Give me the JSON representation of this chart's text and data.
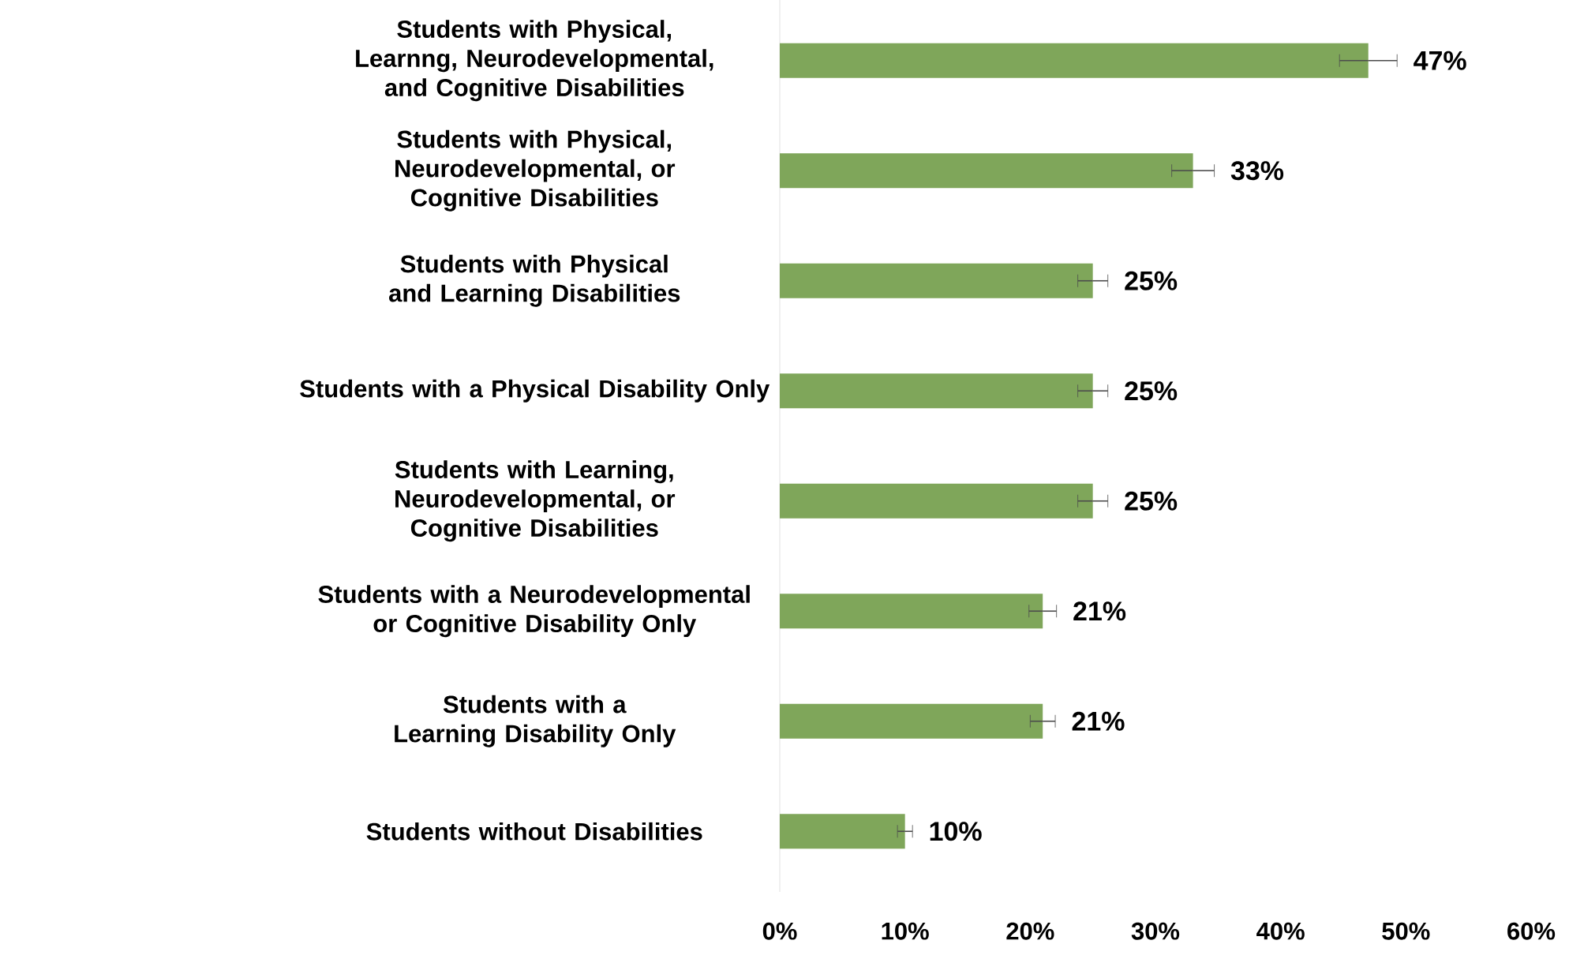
{
  "chart_data": {
    "type": "bar",
    "orientation": "horizontal",
    "categories": [
      "Students with Physical, Learnng, Neurodevelopmental, and Cognitive Disabilities",
      "Students with Physical, Neurodevelopmental, or Cognitive Disabilities",
      "Students with Physical and Learning Disabilities",
      "Students with a Physical Disability Only",
      "Students with Learning, Neurodevelopmental, or Cognitive Disabilities",
      "Students with a Neurodevelopmental or Cognitive Disability Only",
      "Students with a Learning Disability Only",
      "Students without Disabilities"
    ],
    "values": [
      47,
      33,
      25,
      25,
      25,
      21,
      21,
      10
    ],
    "errors": [
      2.3,
      1.7,
      1.2,
      1.2,
      1.2,
      1.1,
      1.0,
      0.6
    ],
    "value_labels": [
      "47%",
      "33%",
      "25%",
      "25%",
      "25%",
      "21%",
      "21%",
      "10%"
    ],
    "color": "#7fa65a",
    "xlim": [
      0,
      60
    ],
    "xticks": [
      {
        "value": 0,
        "label": "0%"
      },
      {
        "value": 10,
        "label": "10%"
      },
      {
        "value": 20,
        "label": "20%"
      },
      {
        "value": 30,
        "label": "30%"
      },
      {
        "value": 40,
        "label": "40%"
      },
      {
        "value": 50,
        "label": "50%"
      },
      {
        "value": 60,
        "label": "60%"
      }
    ],
    "grid": false
  }
}
